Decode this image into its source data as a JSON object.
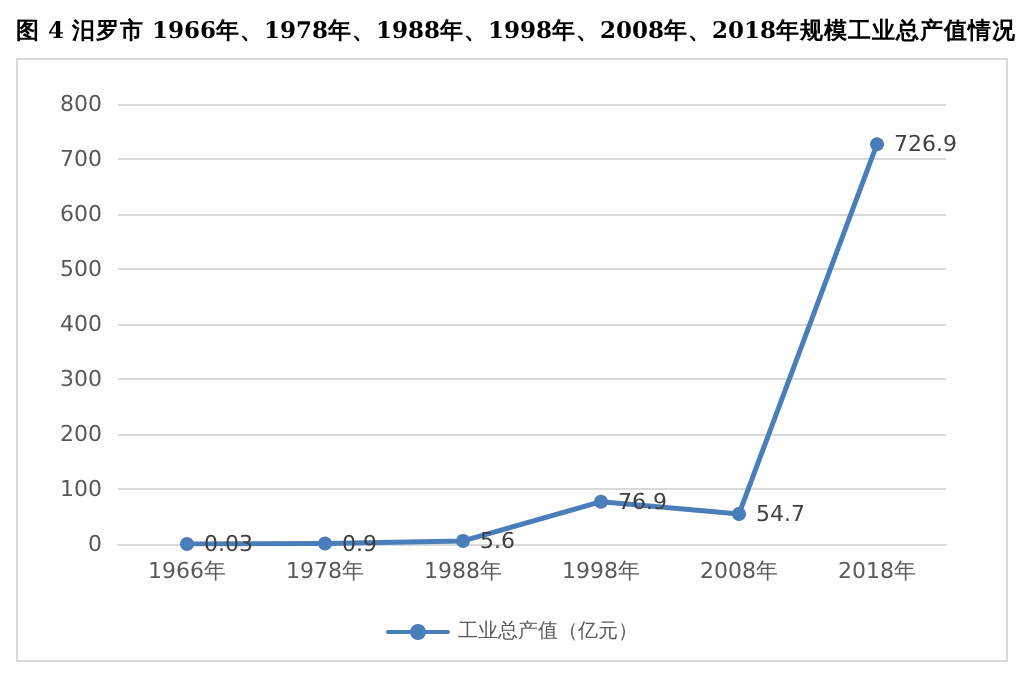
{
  "chart_data": {
    "type": "line",
    "title": "图 4 汨罗市 1966年、1978年、1988年、1998年、2008年、2018年规模工业总产值情况",
    "categories": [
      "1966年",
      "1978年",
      "1988年",
      "1998年",
      "2008年",
      "2018年"
    ],
    "series": [
      {
        "name": "工业总产值（亿元）",
        "color": "#4a7ebb",
        "values": [
          0.03,
          0.9,
          5.6,
          76.9,
          54.7,
          726.9
        ]
      }
    ],
    "ylim": [
      0,
      800
    ],
    "yticks": [
      0,
      100,
      200,
      300,
      400,
      500,
      600,
      700,
      800
    ],
    "grid": "y",
    "legend": "bottom",
    "marker": "circle",
    "line_style": "solid",
    "data_labels": true
  }
}
